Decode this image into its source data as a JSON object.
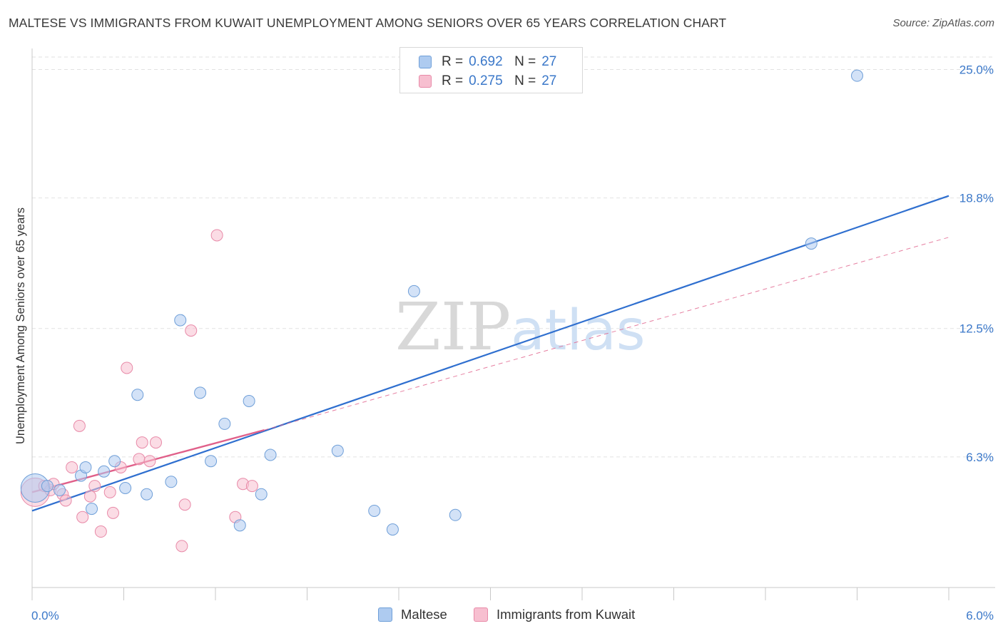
{
  "header": {
    "title": "MALTESE VS IMMIGRANTS FROM KUWAIT UNEMPLOYMENT AMONG SENIORS OVER 65 YEARS CORRELATION CHART",
    "source": "Source: ZipAtlas.com"
  },
  "legend_top": {
    "rows": [
      {
        "r_label": "R =",
        "r_value": "0.692",
        "n_label": "N =",
        "n_value": "27"
      },
      {
        "r_label": "R =",
        "r_value": "0.275",
        "n_label": "N =",
        "n_value": "27"
      }
    ]
  },
  "legend_bottom": {
    "series_a": "Maltese",
    "series_b": "Immigrants from Kuwait"
  },
  "watermark": {
    "zip": "ZIP",
    "atlas": "atlas"
  },
  "colors": {
    "maltese_fill": "#aecbf0",
    "maltese_stroke": "#6f9fd8",
    "maltese_line": "#2f6fcf",
    "kuwait_fill": "#f7bfd0",
    "kuwait_stroke": "#e88aa8",
    "kuwait_line": "#e0608a",
    "axis_label": "#3b78c9"
  },
  "chart_data": {
    "type": "scatter",
    "title": "MALTESE VS IMMIGRANTS FROM KUWAIT UNEMPLOYMENT AMONG SENIORS OVER 65 YEARS CORRELATION CHART",
    "xlabel": "",
    "ylabel": "Unemployment Among Seniors over 65 years",
    "xlim": [
      0,
      6
    ],
    "ylim": [
      0,
      25.6
    ],
    "x_tick_labels": [
      "0.0%",
      "6.0%"
    ],
    "y_ticks": [
      6.3,
      12.5,
      18.8,
      25.0
    ],
    "y_tick_labels": [
      "6.3%",
      "12.5%",
      "18.8%",
      "25.0%"
    ],
    "grid": true,
    "legend_position": "top-center",
    "series": [
      {
        "name": "Maltese",
        "r": 0.692,
        "n": 27,
        "trend": {
          "x0": 0,
          "y0": 3.7,
          "x1": 6,
          "y1": 18.9
        },
        "points": [
          {
            "x": 0.02,
            "y": 4.8,
            "big": true
          },
          {
            "x": 0.1,
            "y": 4.9
          },
          {
            "x": 0.18,
            "y": 4.7
          },
          {
            "x": 0.32,
            "y": 5.4
          },
          {
            "x": 0.35,
            "y": 5.8
          },
          {
            "x": 0.39,
            "y": 3.8
          },
          {
            "x": 0.47,
            "y": 5.6
          },
          {
            "x": 0.54,
            "y": 6.1
          },
          {
            "x": 0.61,
            "y": 4.8
          },
          {
            "x": 0.69,
            "y": 9.3
          },
          {
            "x": 0.75,
            "y": 4.5
          },
          {
            "x": 0.91,
            "y": 5.1
          },
          {
            "x": 0.97,
            "y": 12.9
          },
          {
            "x": 1.1,
            "y": 9.4
          },
          {
            "x": 1.17,
            "y": 6.1
          },
          {
            "x": 1.26,
            "y": 7.9
          },
          {
            "x": 1.36,
            "y": 3.0
          },
          {
            "x": 1.42,
            "y": 9.0
          },
          {
            "x": 1.5,
            "y": 4.5
          },
          {
            "x": 1.56,
            "y": 6.4
          },
          {
            "x": 2.0,
            "y": 6.6
          },
          {
            "x": 2.24,
            "y": 3.7
          },
          {
            "x": 2.36,
            "y": 2.8
          },
          {
            "x": 2.5,
            "y": 14.3
          },
          {
            "x": 2.77,
            "y": 3.5
          },
          {
            "x": 5.1,
            "y": 16.6
          },
          {
            "x": 5.4,
            "y": 24.7
          }
        ]
      },
      {
        "name": "Immigrants from Kuwait",
        "r": 0.275,
        "n": 27,
        "trend_solid": {
          "x0": 0,
          "y0": 4.6,
          "x1": 1.52,
          "y1": 7.6
        },
        "trend_dashed": {
          "x0": 1.52,
          "y0": 7.6,
          "x1": 6,
          "y1": 16.9
        },
        "points": [
          {
            "x": 0.02,
            "y": 4.6,
            "big": true
          },
          {
            "x": 0.08,
            "y": 4.9
          },
          {
            "x": 0.12,
            "y": 4.7
          },
          {
            "x": 0.2,
            "y": 4.5
          },
          {
            "x": 0.22,
            "y": 4.2
          },
          {
            "x": 0.26,
            "y": 5.8
          },
          {
            "x": 0.31,
            "y": 7.8
          },
          {
            "x": 0.33,
            "y": 3.4
          },
          {
            "x": 0.38,
            "y": 4.4
          },
          {
            "x": 0.41,
            "y": 4.9
          },
          {
            "x": 0.45,
            "y": 2.7
          },
          {
            "x": 0.51,
            "y": 4.6
          },
          {
            "x": 0.53,
            "y": 3.6
          },
          {
            "x": 0.58,
            "y": 5.8
          },
          {
            "x": 0.62,
            "y": 10.6
          },
          {
            "x": 0.7,
            "y": 6.2
          },
          {
            "x": 0.72,
            "y": 7.0
          },
          {
            "x": 0.77,
            "y": 6.1
          },
          {
            "x": 0.81,
            "y": 7.0
          },
          {
            "x": 0.98,
            "y": 2.0
          },
          {
            "x": 1.0,
            "y": 4.0
          },
          {
            "x": 1.04,
            "y": 12.4
          },
          {
            "x": 1.21,
            "y": 17.0
          },
          {
            "x": 1.33,
            "y": 3.4
          },
          {
            "x": 1.38,
            "y": 5.0
          },
          {
            "x": 1.44,
            "y": 4.9
          },
          {
            "x": 0.14,
            "y": 5.0
          }
        ]
      }
    ]
  }
}
